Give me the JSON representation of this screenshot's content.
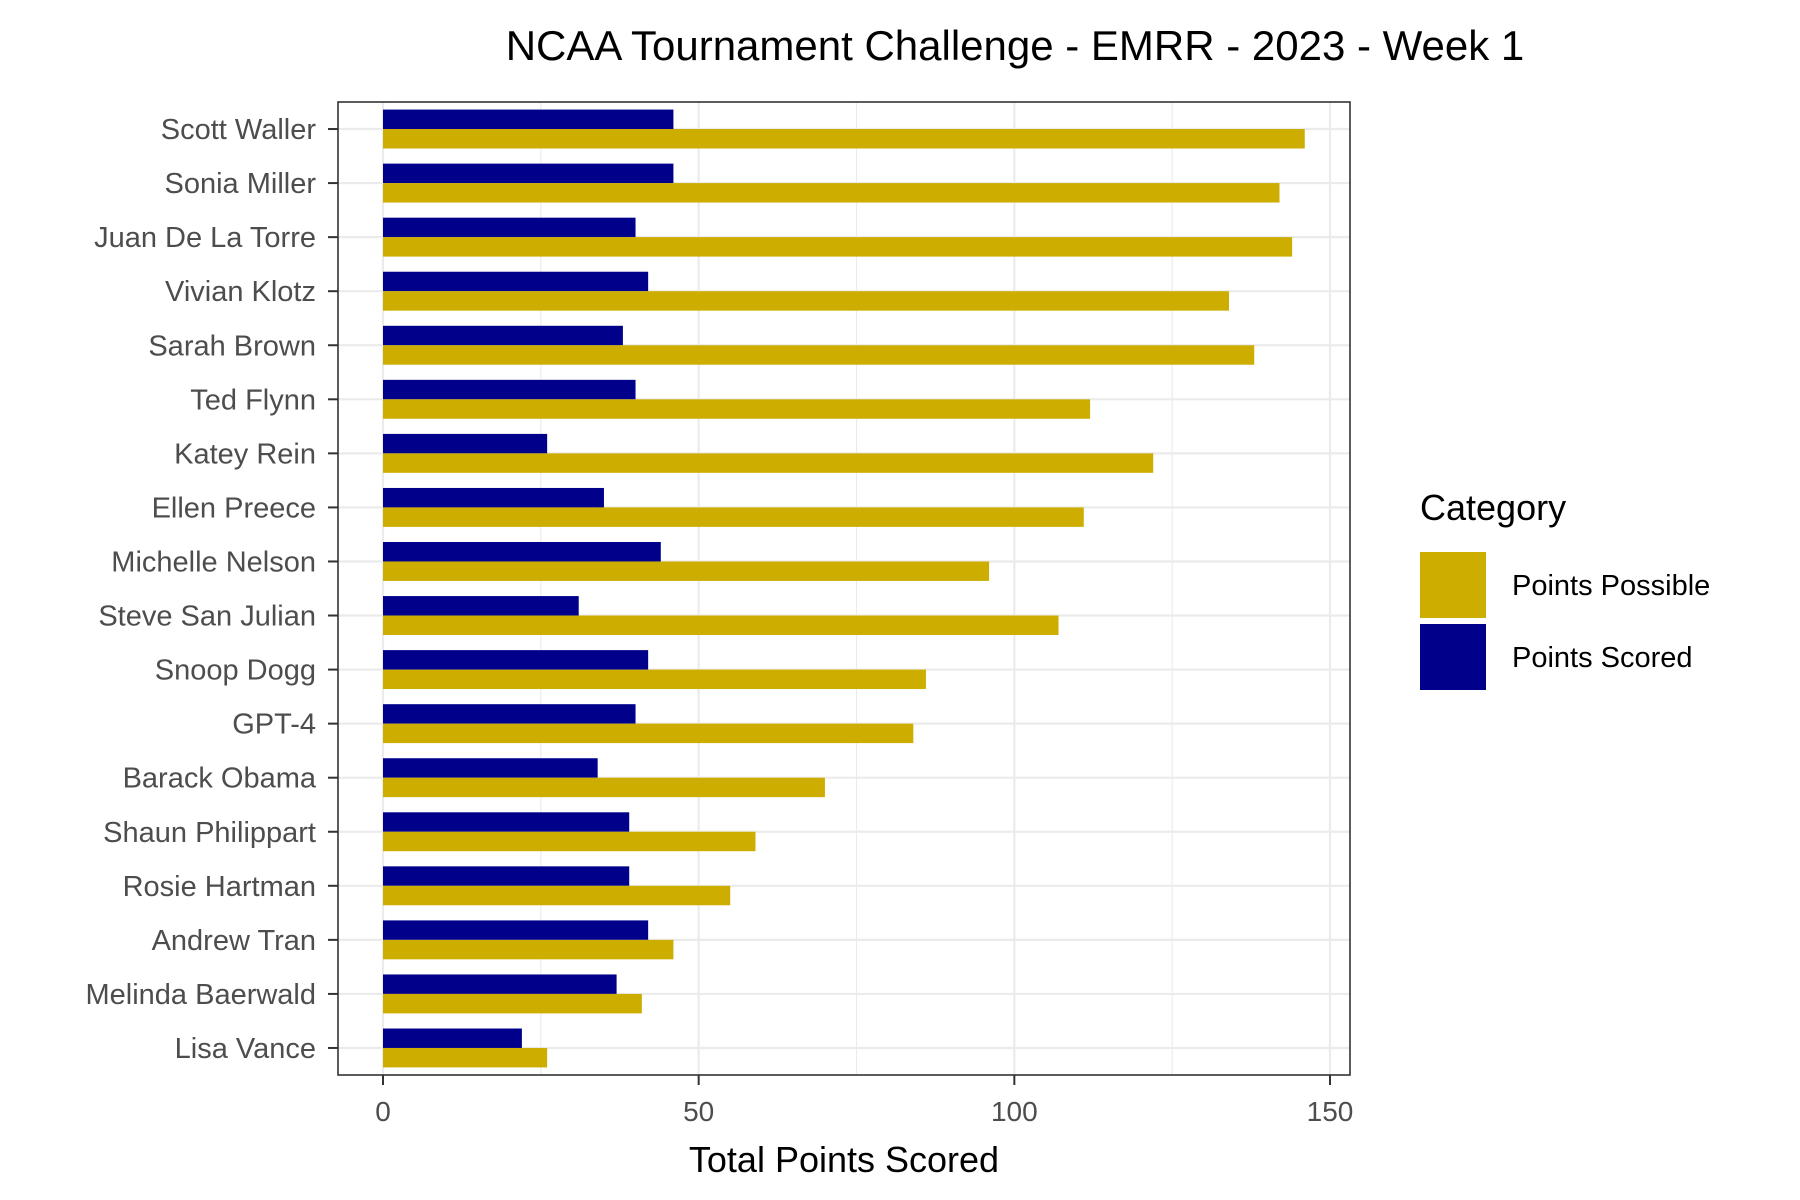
{
  "chart_data": {
    "type": "bar",
    "orientation": "horizontal",
    "title": "NCAA Tournament Challenge - EMRR - 2023 - Week 1",
    "xlabel": "Total Points Scored",
    "ylabel": "",
    "xlim": [
      0,
      150
    ],
    "xticks": [
      "0",
      "50",
      "100",
      "150"
    ],
    "grid": true,
    "legend_position": "right",
    "legend_title": "Category",
    "categories": [
      "Scott Waller",
      "Sonia Miller",
      "Juan De La Torre",
      "Vivian Klotz",
      "Sarah Brown",
      "Ted Flynn",
      "Katey Rein",
      "Ellen Preece",
      "Michelle Nelson",
      "Steve San Julian",
      "Snoop Dogg",
      "GPT-4",
      "Barack Obama",
      "Shaun Philippart",
      "Rosie Hartman",
      "Andrew Tran",
      "Melinda Baerwald",
      "Lisa Vance"
    ],
    "series": [
      {
        "name": "Points Possible",
        "color": "#CDAD00",
        "values": [
          146,
          142,
          144,
          134,
          138,
          112,
          122,
          111,
          96,
          107,
          86,
          84,
          70,
          59,
          55,
          46,
          41,
          26
        ]
      },
      {
        "name": "Points Scored",
        "color": "#00008B",
        "values": [
          46,
          46,
          40,
          42,
          38,
          40,
          26,
          35,
          44,
          31,
          42,
          40,
          34,
          39,
          39,
          42,
          37,
          22
        ]
      }
    ]
  }
}
